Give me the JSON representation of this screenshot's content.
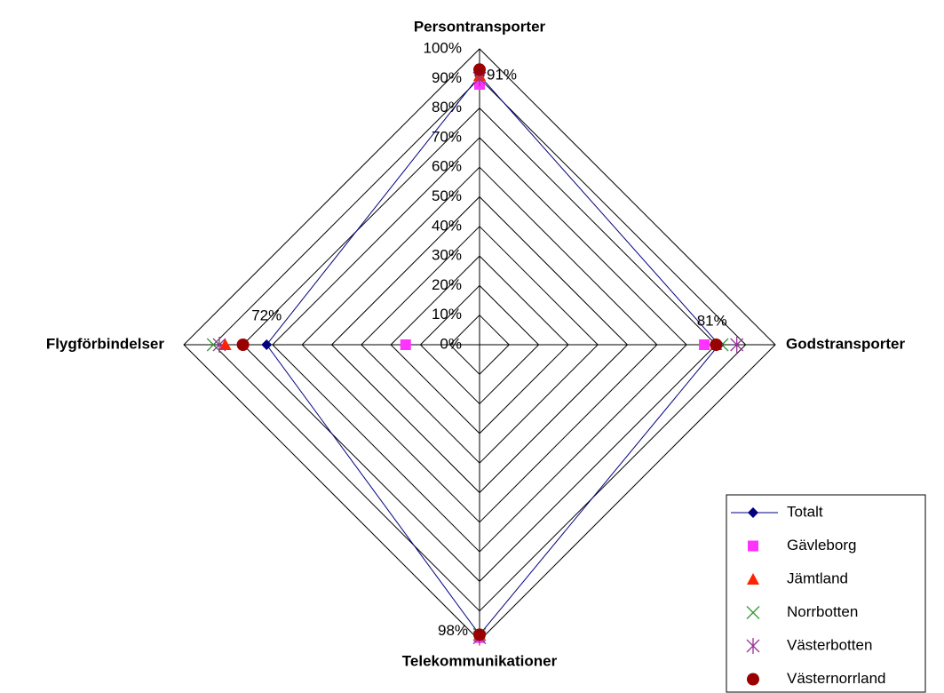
{
  "chart_data": {
    "type": "radar",
    "categories": [
      "Persontransporter",
      "Godstransporter",
      "Telekommunikationer",
      "Flygförbindelser"
    ],
    "series": [
      {
        "name": "Totalt",
        "color": "#000080",
        "marker": "diamond",
        "line": true,
        "values": [
          91,
          81,
          98,
          72
        ],
        "value_labels": [
          "91%",
          "81%",
          "98%",
          "72%"
        ]
      },
      {
        "name": "Gävleborg",
        "color": "#ff33ff",
        "marker": "square",
        "values": [
          88,
          76,
          99,
          25
        ]
      },
      {
        "name": "Jämtland",
        "color": "#ff2200",
        "marker": "triangle",
        "values": [
          91,
          80,
          98,
          86
        ]
      },
      {
        "name": "Norrbotten",
        "color": "#339933",
        "marker": "x",
        "values": [
          90,
          82,
          98,
          90
        ]
      },
      {
        "name": "Västerbotten",
        "color": "#993399",
        "marker": "asterisk",
        "values": [
          90,
          87,
          99,
          88
        ]
      },
      {
        "name": "Västernorrland",
        "color": "#990000",
        "marker": "circle",
        "values": [
          93,
          80,
          98,
          80
        ]
      }
    ],
    "rlim": [
      0,
      100
    ],
    "rticks": [
      {
        "value": 0,
        "label": "0%"
      },
      {
        "value": 10,
        "label": "10%"
      },
      {
        "value": 20,
        "label": "20%"
      },
      {
        "value": 30,
        "label": "30%"
      },
      {
        "value": 40,
        "label": "40%"
      },
      {
        "value": 50,
        "label": "50%"
      },
      {
        "value": 60,
        "label": "60%"
      },
      {
        "value": 70,
        "label": "70%"
      },
      {
        "value": 80,
        "label": "80%"
      },
      {
        "value": 90,
        "label": "90%"
      },
      {
        "value": 100,
        "label": "100%"
      }
    ],
    "grid": true,
    "legend": "bottom-right"
  }
}
